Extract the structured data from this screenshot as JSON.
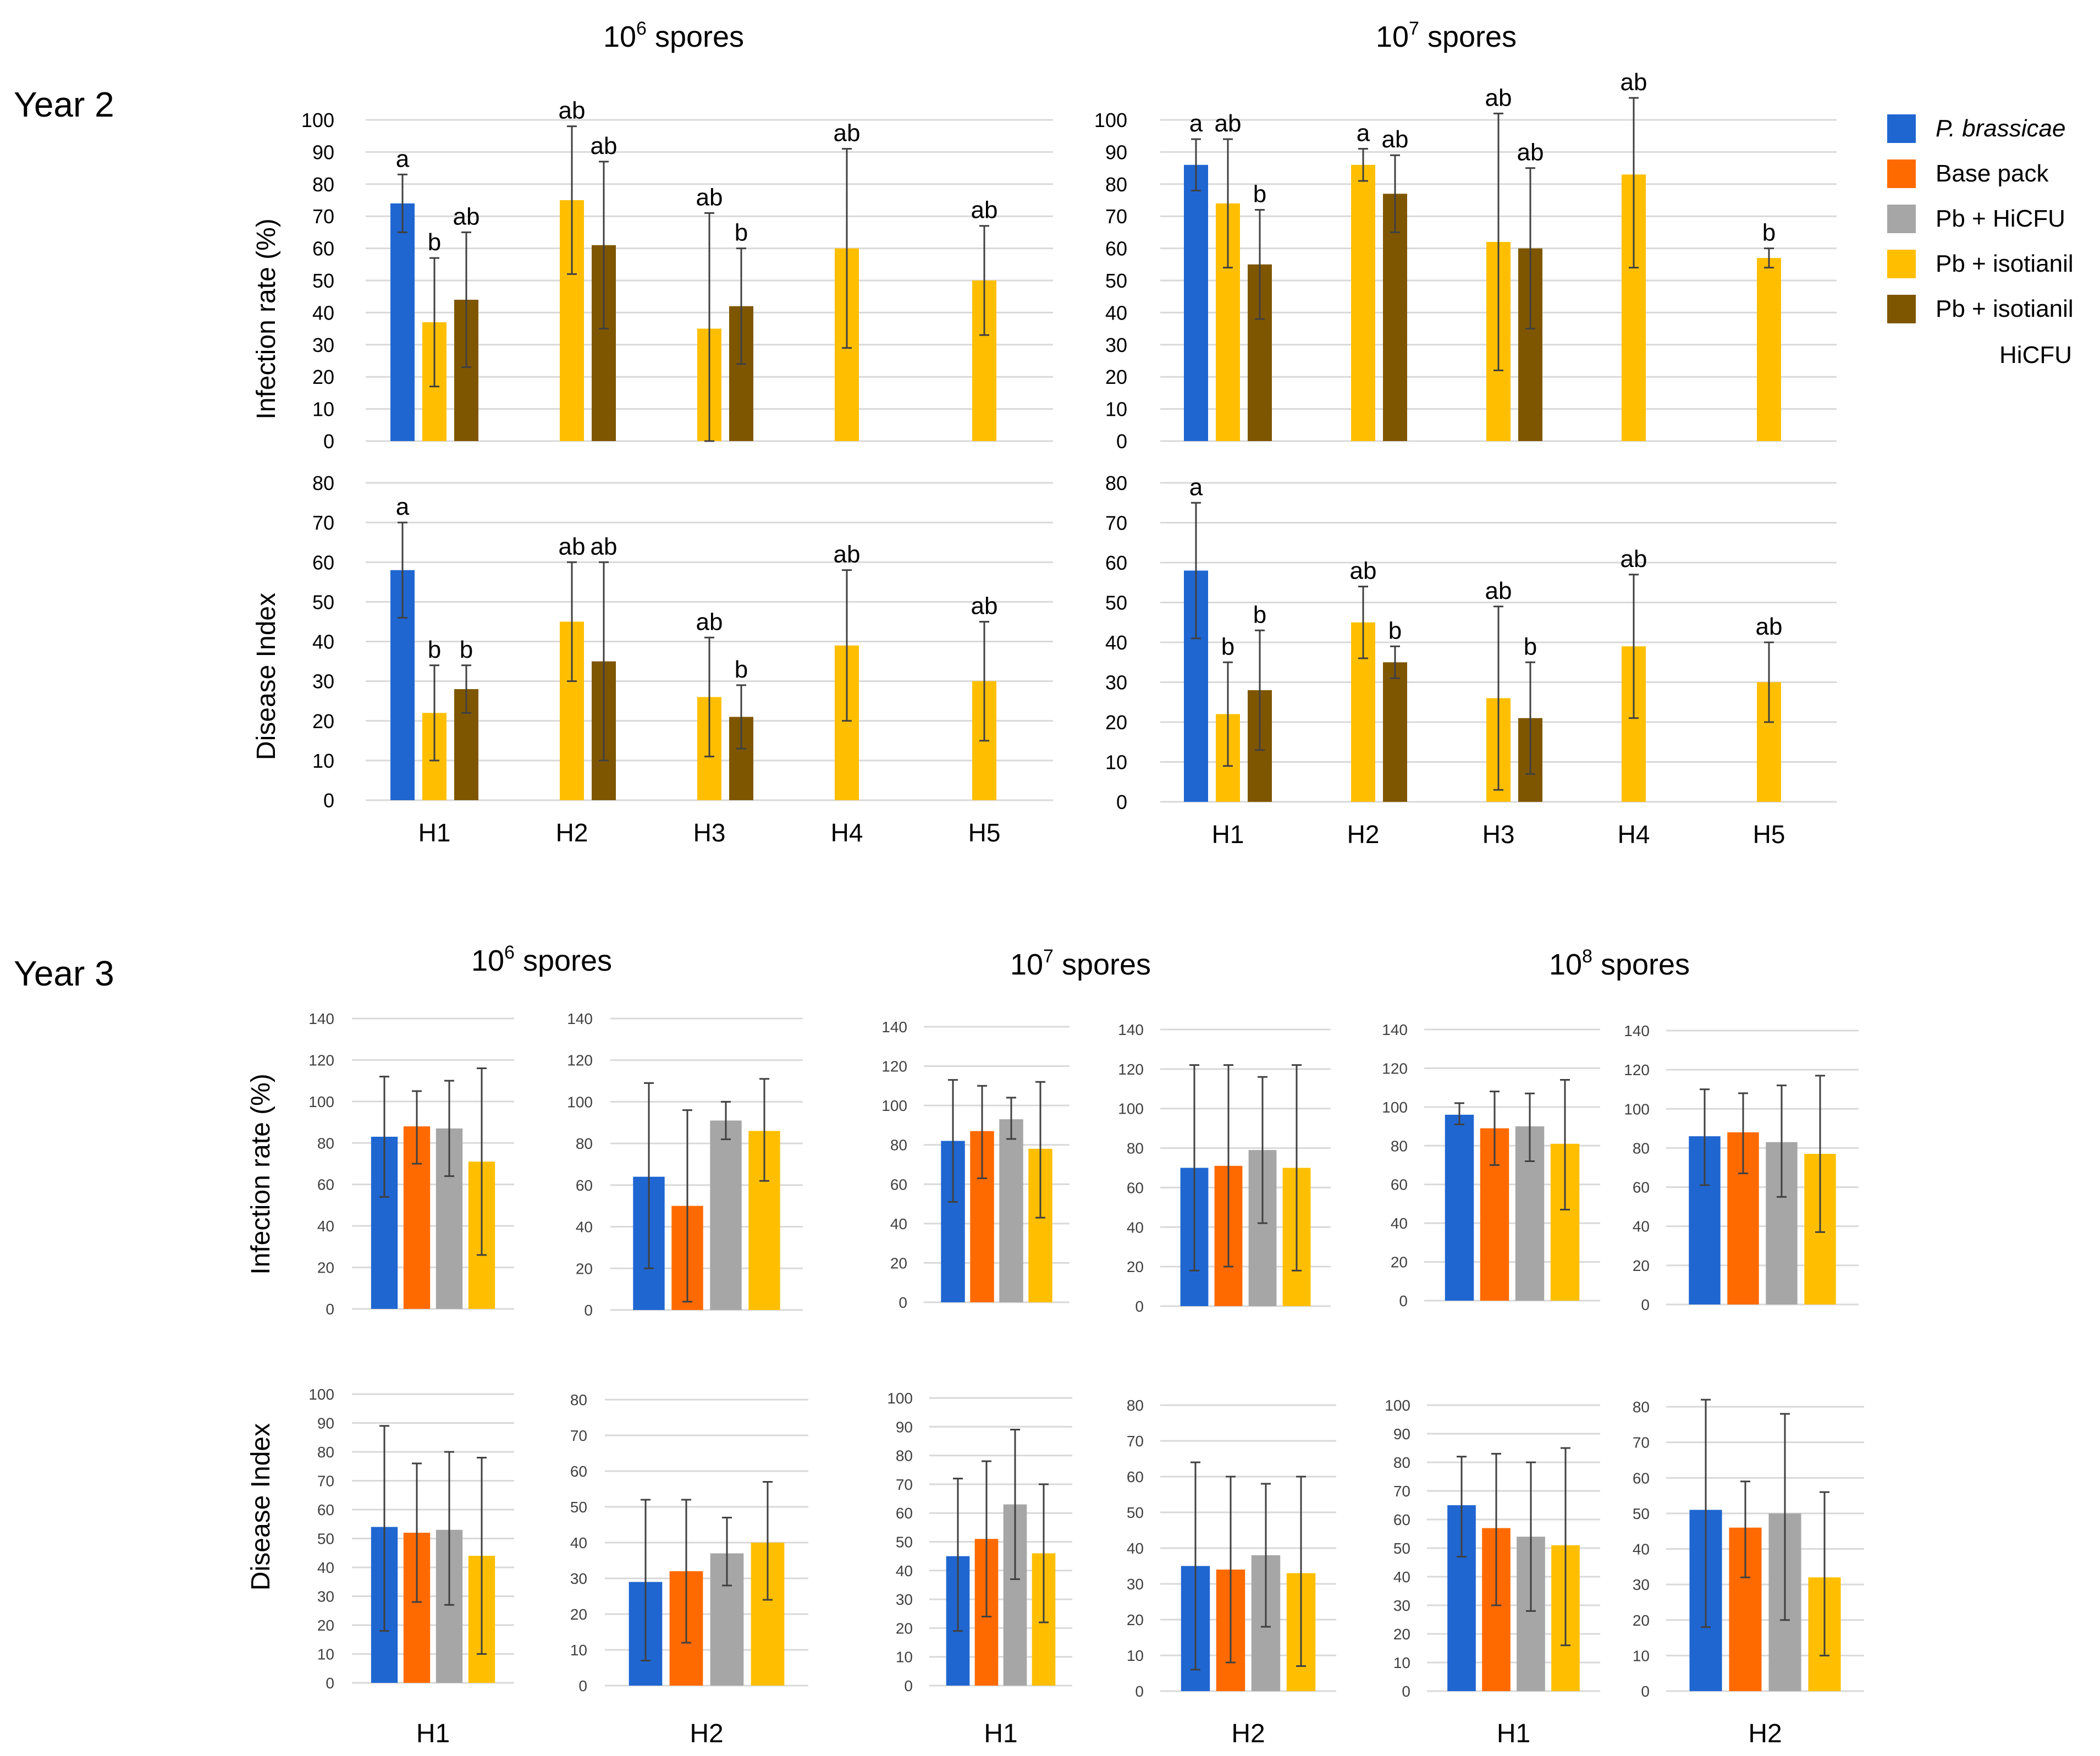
{
  "colors": {
    "pb": "#1f66d1",
    "base": "#ff6a00",
    "hicfu": "#a6a6a6",
    "isotianil": "#ffbf00",
    "isohicfu": "#7f5600",
    "grid": "#d9d9d9",
    "err": "#404040"
  },
  "labels": {
    "year2": "Year 2",
    "year3": "Year 3",
    "spores_base": "10",
    "spores_word": " spores",
    "exp6": "6",
    "exp7": "7",
    "exp8": "8",
    "infection_ylabel": "Infection rate (%)",
    "disease_ylabel": "Disease Index"
  },
  "legend": [
    {
      "key": "pb",
      "label": "P. brassicae",
      "italic": true
    },
    {
      "key": "base",
      "label": "Base pack"
    },
    {
      "key": "hicfu",
      "label": "Pb + HiCFU"
    },
    {
      "key": "isotianil",
      "label": "Pb + isotianil"
    },
    {
      "key": "isohicfu",
      "label": "Pb + isotianil",
      "label2": "HiCFU"
    }
  ],
  "chart_data": [
    {
      "id": "y2-1e6-infection",
      "type": "bar",
      "ylabel": "Infection rate (%)",
      "ylim": [
        0,
        100
      ],
      "yticks": [
        0,
        10,
        20,
        30,
        40,
        50,
        60,
        70,
        80,
        90,
        100
      ],
      "categories": [
        "H1",
        "H2",
        "H3",
        "H4",
        "H5"
      ],
      "show_categories": false,
      "bars": [
        {
          "cat": "H1",
          "slot": 0,
          "key": "pb",
          "value": 74,
          "err": [
            65,
            83
          ],
          "letter": "a"
        },
        {
          "cat": "H1",
          "slot": 1,
          "key": "isotianil",
          "value": 37,
          "err": [
            17,
            57
          ],
          "letter": "b"
        },
        {
          "cat": "H1",
          "slot": 2,
          "key": "isohicfu",
          "value": 44,
          "err": [
            23,
            65
          ],
          "letter": "ab"
        },
        {
          "cat": "H2",
          "slot": 1,
          "key": "isotianil",
          "value": 75,
          "err": [
            52,
            98
          ],
          "letter": "ab"
        },
        {
          "cat": "H2",
          "slot": 2,
          "key": "isohicfu",
          "value": 61,
          "err": [
            35,
            87
          ],
          "letter": "ab"
        },
        {
          "cat": "H3",
          "slot": 1,
          "key": "isotianil",
          "value": 35,
          "err": [
            0,
            71
          ],
          "letter": "ab"
        },
        {
          "cat": "H3",
          "slot": 2,
          "key": "isohicfu",
          "value": 42,
          "err": [
            24,
            60
          ],
          "letter": "b"
        },
        {
          "cat": "H4",
          "slot": 1,
          "key": "isotianil",
          "value": 60,
          "err": [
            29,
            91
          ],
          "letter": "ab"
        },
        {
          "cat": "H5",
          "slot": 1,
          "key": "isotianil",
          "value": 50,
          "err": [
            33,
            67
          ],
          "letter": "ab"
        }
      ]
    },
    {
      "id": "y2-1e6-disease",
      "type": "bar",
      "ylabel": "Disease Index",
      "ylim": [
        0,
        80
      ],
      "yticks": [
        0,
        10,
        20,
        30,
        40,
        50,
        60,
        70,
        80
      ],
      "categories": [
        "H1",
        "H2",
        "H3",
        "H4",
        "H5"
      ],
      "show_categories": true,
      "bars": [
        {
          "cat": "H1",
          "slot": 0,
          "key": "pb",
          "value": 58,
          "err": [
            46,
            70
          ],
          "letter": "a"
        },
        {
          "cat": "H1",
          "slot": 1,
          "key": "isotianil",
          "value": 22,
          "err": [
            10,
            34
          ],
          "letter": "b"
        },
        {
          "cat": "H1",
          "slot": 2,
          "key": "isohicfu",
          "value": 28,
          "err": [
            22,
            34
          ],
          "letter": "b"
        },
        {
          "cat": "H2",
          "slot": 1,
          "key": "isotianil",
          "value": 45,
          "err": [
            30,
            60
          ],
          "letter": "ab"
        },
        {
          "cat": "H2",
          "slot": 2,
          "key": "isohicfu",
          "value": 35,
          "err": [
            10,
            60
          ],
          "letter": "ab"
        },
        {
          "cat": "H3",
          "slot": 1,
          "key": "isotianil",
          "value": 26,
          "err": [
            11,
            41
          ],
          "letter": "ab"
        },
        {
          "cat": "H3",
          "slot": 2,
          "key": "isohicfu",
          "value": 21,
          "err": [
            13,
            29
          ],
          "letter": "b"
        },
        {
          "cat": "H4",
          "slot": 1,
          "key": "isotianil",
          "value": 39,
          "err": [
            20,
            58
          ],
          "letter": "ab"
        },
        {
          "cat": "H5",
          "slot": 1,
          "key": "isotianil",
          "value": 30,
          "err": [
            15,
            45
          ],
          "letter": "ab"
        }
      ]
    },
    {
      "id": "y2-1e7-infection",
      "type": "bar",
      "ylabel": "",
      "ylim": [
        0,
        100
      ],
      "yticks": [
        0,
        10,
        20,
        30,
        40,
        50,
        60,
        70,
        80,
        90,
        100
      ],
      "categories": [
        "H1",
        "H2",
        "H3",
        "H4",
        "H5"
      ],
      "show_categories": false,
      "bars": [
        {
          "cat": "H1",
          "slot": 0,
          "key": "pb",
          "value": 86,
          "err": [
            78,
            94
          ],
          "letter": "a"
        },
        {
          "cat": "H1",
          "slot": 1,
          "key": "isotianil",
          "value": 74,
          "err": [
            54,
            94
          ],
          "letter": "ab"
        },
        {
          "cat": "H1",
          "slot": 2,
          "key": "isohicfu",
          "value": 55,
          "err": [
            38,
            72
          ],
          "letter": "b"
        },
        {
          "cat": "H2",
          "slot": 1,
          "key": "isotianil",
          "value": 86,
          "err": [
            81,
            91
          ],
          "letter": "a"
        },
        {
          "cat": "H2",
          "slot": 2,
          "key": "isohicfu",
          "value": 77,
          "err": [
            65,
            89
          ],
          "letter": "ab"
        },
        {
          "cat": "H3",
          "slot": 1,
          "key": "isotianil",
          "value": 62,
          "err": [
            22,
            102
          ],
          "letter": "ab"
        },
        {
          "cat": "H3",
          "slot": 2,
          "key": "isohicfu",
          "value": 60,
          "err": [
            35,
            85
          ],
          "letter": "ab"
        },
        {
          "cat": "H4",
          "slot": 1,
          "key": "isotianil",
          "value": 83,
          "err": [
            54,
            112
          ],
          "letter": "ab"
        },
        {
          "cat": "H5",
          "slot": 1,
          "key": "isotianil",
          "value": 57,
          "err": [
            54,
            60
          ],
          "letter": "b"
        }
      ]
    },
    {
      "id": "y2-1e7-disease",
      "type": "bar",
      "ylabel": "",
      "ylim": [
        0,
        80
      ],
      "yticks": [
        0,
        10,
        20,
        30,
        40,
        50,
        60,
        70,
        80
      ],
      "categories": [
        "H1",
        "H2",
        "H3",
        "H4",
        "H5"
      ],
      "show_categories": true,
      "bars": [
        {
          "cat": "H1",
          "slot": 0,
          "key": "pb",
          "value": 58,
          "err": [
            41,
            75
          ],
          "letter": "a"
        },
        {
          "cat": "H1",
          "slot": 1,
          "key": "isotianil",
          "value": 22,
          "err": [
            9,
            35
          ],
          "letter": "b"
        },
        {
          "cat": "H1",
          "slot": 2,
          "key": "isohicfu",
          "value": 28,
          "err": [
            13,
            43
          ],
          "letter": "b"
        },
        {
          "cat": "H2",
          "slot": 1,
          "key": "isotianil",
          "value": 45,
          "err": [
            36,
            54
          ],
          "letter": "ab"
        },
        {
          "cat": "H2",
          "slot": 2,
          "key": "isohicfu",
          "value": 35,
          "err": [
            31,
            39
          ],
          "letter": "b"
        },
        {
          "cat": "H3",
          "slot": 1,
          "key": "isotianil",
          "value": 26,
          "err": [
            3,
            49
          ],
          "letter": "ab"
        },
        {
          "cat": "H3",
          "slot": 2,
          "key": "isohicfu",
          "value": 21,
          "err": [
            7,
            35
          ],
          "letter": "b"
        },
        {
          "cat": "H4",
          "slot": 1,
          "key": "isotianil",
          "value": 39,
          "err": [
            21,
            57
          ],
          "letter": "ab"
        },
        {
          "cat": "H5",
          "slot": 1,
          "key": "isotianil",
          "value": 30,
          "err": [
            20,
            40
          ],
          "letter": "ab"
        }
      ]
    },
    {
      "id": "y3-1e6-inf-H1",
      "type": "bar",
      "ylim": [
        0,
        140
      ],
      "yticks": [
        0,
        20,
        40,
        60,
        80,
        100,
        120,
        140
      ],
      "category": "H1",
      "series": [
        "pb",
        "base",
        "hicfu",
        "isotianil"
      ],
      "values": [
        83,
        88,
        87,
        71
      ],
      "err": [
        [
          54,
          112
        ],
        [
          70,
          105
        ],
        [
          64,
          110
        ],
        [
          26,
          116
        ]
      ]
    },
    {
      "id": "y3-1e6-inf-H2",
      "type": "bar",
      "ylim": [
        0,
        140
      ],
      "yticks": [
        0,
        20,
        40,
        60,
        80,
        100,
        120,
        140
      ],
      "category": "H2",
      "series": [
        "pb",
        "base",
        "hicfu",
        "isotianil"
      ],
      "values": [
        64,
        50,
        91,
        86
      ],
      "err": [
        [
          20,
          109
        ],
        [
          4,
          96
        ],
        [
          82,
          100
        ],
        [
          62,
          111
        ]
      ]
    },
    {
      "id": "y3-1e7-inf-H1",
      "type": "bar",
      "ylim": [
        0,
        140
      ],
      "yticks": [
        0,
        20,
        40,
        60,
        80,
        100,
        120,
        140
      ],
      "category": "H1",
      "series": [
        "pb",
        "base",
        "hicfu",
        "isotianil"
      ],
      "values": [
        82,
        87,
        93,
        78
      ],
      "err": [
        [
          51,
          113
        ],
        [
          63,
          110
        ],
        [
          83,
          104
        ],
        [
          43,
          112
        ]
      ]
    },
    {
      "id": "y3-1e7-inf-H2",
      "type": "bar",
      "ylim": [
        0,
        140
      ],
      "yticks": [
        0,
        20,
        40,
        60,
        80,
        100,
        120,
        140
      ],
      "category": "H2",
      "series": [
        "pb",
        "base",
        "hicfu",
        "isotianil"
      ],
      "values": [
        70,
        71,
        79,
        70
      ],
      "err": [
        [
          18,
          122
        ],
        [
          20,
          122
        ],
        [
          42,
          116
        ],
        [
          18,
          122
        ]
      ]
    },
    {
      "id": "y3-1e8-inf-H1",
      "type": "bar",
      "ylim": [
        0,
        140
      ],
      "yticks": [
        0,
        20,
        40,
        60,
        80,
        100,
        120,
        140
      ],
      "category": "H1",
      "series": [
        "pb",
        "base",
        "hicfu",
        "isotianil"
      ],
      "values": [
        96,
        89,
        90,
        81
      ],
      "err": [
        [
          91,
          102
        ],
        [
          70,
          108
        ],
        [
          72,
          107
        ],
        [
          47,
          114
        ]
      ]
    },
    {
      "id": "y3-1e8-inf-H2",
      "type": "bar",
      "ylim": [
        0,
        140
      ],
      "yticks": [
        0,
        20,
        40,
        60,
        80,
        100,
        120,
        140
      ],
      "category": "H2",
      "series": [
        "pb",
        "base",
        "hicfu",
        "isotianil"
      ],
      "values": [
        86,
        88,
        83,
        77
      ],
      "err": [
        [
          61,
          110
        ],
        [
          67,
          108
        ],
        [
          55,
          112
        ],
        [
          37,
          117
        ]
      ]
    },
    {
      "id": "y3-1e6-dis-H1",
      "type": "bar",
      "ylim": [
        0,
        100
      ],
      "yticks": [
        0,
        10,
        20,
        30,
        40,
        50,
        60,
        70,
        80,
        90,
        100
      ],
      "category": "H1",
      "series": [
        "pb",
        "base",
        "hicfu",
        "isotianil"
      ],
      "values": [
        54,
        52,
        53,
        44
      ],
      "err": [
        [
          18,
          89
        ],
        [
          28,
          76
        ],
        [
          27,
          80
        ],
        [
          10,
          78
        ]
      ]
    },
    {
      "id": "y3-1e6-dis-H2",
      "type": "bar",
      "ylim": [
        0,
        80
      ],
      "yticks": [
        0,
        10,
        20,
        30,
        40,
        50,
        60,
        70,
        80
      ],
      "category": "H2",
      "series": [
        "pb",
        "base",
        "hicfu",
        "isotianil"
      ],
      "values": [
        29,
        32,
        37,
        40
      ],
      "err": [
        [
          7,
          52
        ],
        [
          12,
          52
        ],
        [
          28,
          47
        ],
        [
          24,
          57
        ]
      ]
    },
    {
      "id": "y3-1e7-dis-H1",
      "type": "bar",
      "ylim": [
        0,
        100
      ],
      "yticks": [
        0,
        10,
        20,
        30,
        40,
        50,
        60,
        70,
        80,
        90,
        100
      ],
      "category": "H1",
      "series": [
        "pb",
        "base",
        "hicfu",
        "isotianil"
      ],
      "values": [
        45,
        51,
        63,
        46
      ],
      "err": [
        [
          19,
          72
        ],
        [
          24,
          78
        ],
        [
          37,
          89
        ],
        [
          22,
          70
        ]
      ]
    },
    {
      "id": "y3-1e7-dis-H2",
      "type": "bar",
      "ylim": [
        0,
        80
      ],
      "yticks": [
        0,
        10,
        20,
        30,
        40,
        50,
        60,
        70,
        80
      ],
      "category": "H2",
      "series": [
        "pb",
        "base",
        "hicfu",
        "isotianil"
      ],
      "values": [
        35,
        34,
        38,
        33
      ],
      "err": [
        [
          6,
          64
        ],
        [
          8,
          60
        ],
        [
          18,
          58
        ],
        [
          7,
          60
        ]
      ]
    },
    {
      "id": "y3-1e8-dis-H1",
      "type": "bar",
      "ylim": [
        0,
        100
      ],
      "yticks": [
        0,
        10,
        20,
        30,
        40,
        50,
        60,
        70,
        80,
        90,
        100
      ],
      "category": "H1",
      "series": [
        "pb",
        "base",
        "hicfu",
        "isotianil"
      ],
      "values": [
        65,
        57,
        54,
        51
      ],
      "err": [
        [
          47,
          82
        ],
        [
          30,
          83
        ],
        [
          28,
          80
        ],
        [
          16,
          85
        ]
      ]
    },
    {
      "id": "y3-1e8-dis-H2",
      "type": "bar",
      "ylim": [
        0,
        80
      ],
      "yticks": [
        0,
        10,
        20,
        30,
        40,
        50,
        60,
        70,
        80
      ],
      "category": "H2",
      "series": [
        "pb",
        "base",
        "hicfu",
        "isotianil"
      ],
      "values": [
        51,
        46,
        50,
        32
      ],
      "err": [
        [
          18,
          82
        ],
        [
          32,
          59
        ],
        [
          20,
          78
        ],
        [
          10,
          56
        ]
      ]
    }
  ]
}
